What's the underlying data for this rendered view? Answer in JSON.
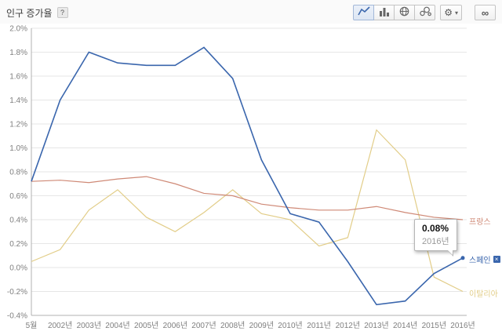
{
  "header": {
    "title": "인구 증가율",
    "help_label": "?"
  },
  "toolbar": {
    "chart_type_buttons": [
      {
        "name": "line-chart",
        "selected": true
      },
      {
        "name": "bar-chart",
        "selected": false
      },
      {
        "name": "map-chart",
        "selected": false
      },
      {
        "name": "bubble-chart",
        "selected": false
      }
    ],
    "gear_glyph": "⚙",
    "caret_glyph": "▾",
    "link_glyph": "∞"
  },
  "chart_data": {
    "type": "line",
    "title": "인구 증가율",
    "grid": true,
    "legend_position": "right",
    "categories": [
      "5월",
      "2002년",
      "2003년",
      "2004년",
      "2005년",
      "2006년",
      "2007년",
      "2008년",
      "2009년",
      "2010년",
      "2011년",
      "2012년",
      "2013년",
      "2014년",
      "2015년",
      "2016년"
    ],
    "ylim": [
      -0.4,
      2.0
    ],
    "yticks": [
      {
        "v": 2.0,
        "label": "2.0%"
      },
      {
        "v": 1.8,
        "label": "1.8%"
      },
      {
        "v": 1.6,
        "label": "1.6%"
      },
      {
        "v": 1.4,
        "label": "1.4%"
      },
      {
        "v": 1.2,
        "label": "1.2%"
      },
      {
        "v": 1.0,
        "label": "1.0%"
      },
      {
        "v": 0.8,
        "label": "0.8%"
      },
      {
        "v": 0.6,
        "label": "0.6%"
      },
      {
        "v": 0.4,
        "label": "0.4%"
      },
      {
        "v": 0.2,
        "label": "0.2%"
      },
      {
        "v": 0.0,
        "label": "0.0%"
      },
      {
        "v": -0.2,
        "label": "-0.2%"
      },
      {
        "v": -0.4,
        "label": "-0.4%"
      }
    ],
    "series": [
      {
        "name": "스페인",
        "label": "스페인",
        "close_glyph": "×",
        "color": "#3a66ad",
        "width": 1.6,
        "marker": true,
        "values": [
          0.72,
          1.4,
          1.8,
          1.71,
          1.69,
          1.69,
          1.84,
          1.58,
          0.9,
          0.45,
          0.38,
          0.05,
          -0.31,
          -0.28,
          -0.05,
          0.08
        ]
      },
      {
        "name": "프랑스",
        "label": "프랑스",
        "color": "#cf8976",
        "width": 1.2,
        "marker": false,
        "values": [
          0.72,
          0.73,
          0.71,
          0.74,
          0.76,
          0.7,
          0.62,
          0.6,
          0.53,
          0.5,
          0.48,
          0.48,
          0.51,
          0.46,
          0.42,
          0.4
        ]
      },
      {
        "name": "이탈리아",
        "label": "이탈리아",
        "color": "#e2cd88",
        "width": 1.2,
        "marker": false,
        "values": [
          0.05,
          0.15,
          0.48,
          0.65,
          0.42,
          0.3,
          0.46,
          0.65,
          0.45,
          0.4,
          0.18,
          0.25,
          1.15,
          0.9,
          -0.08,
          -0.2
        ]
      }
    ],
    "tooltip": {
      "value": "0.08%",
      "year": "2016년"
    }
  }
}
